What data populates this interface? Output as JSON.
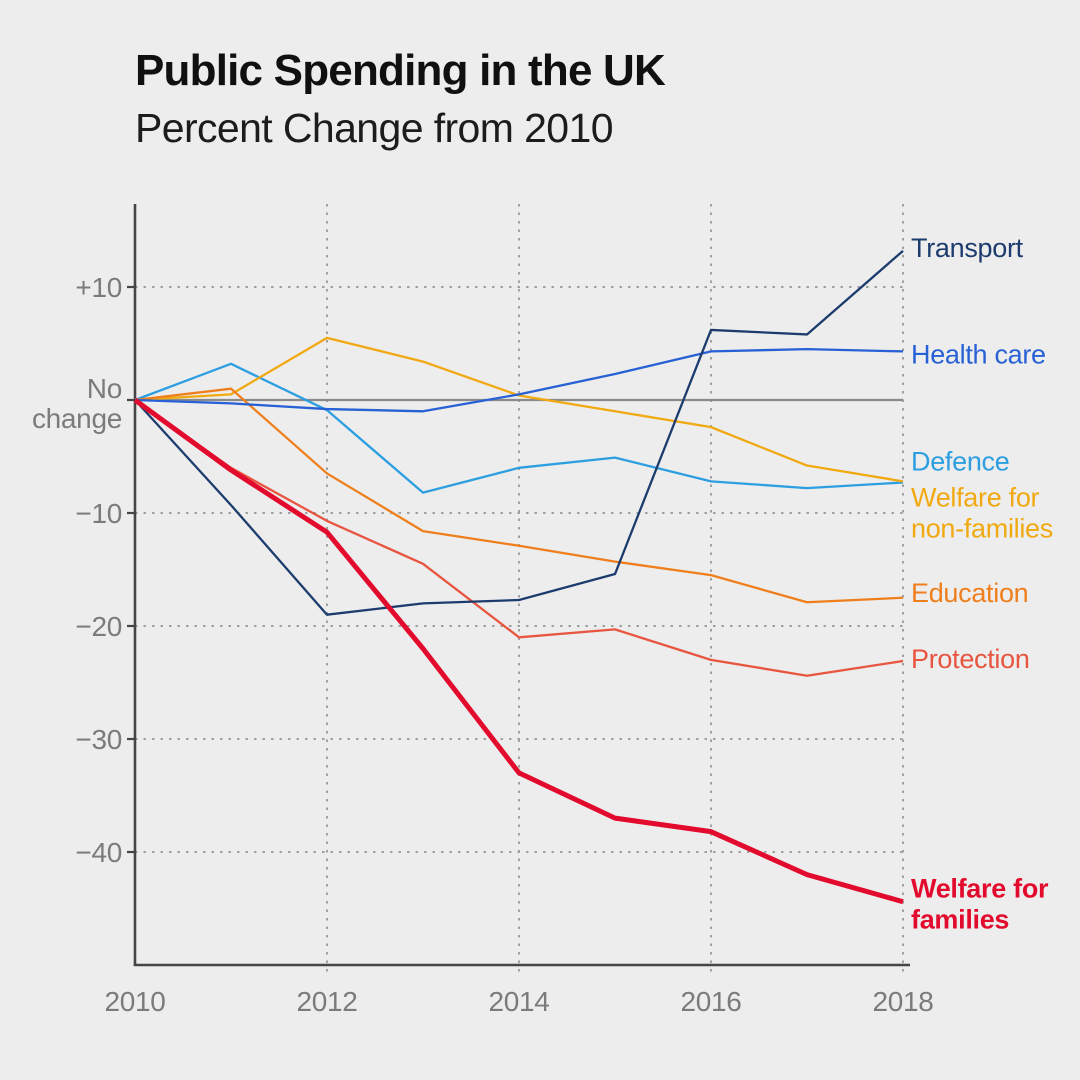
{
  "header": {
    "title": "Public Spending in the UK",
    "subtitle": "Percent Change from 2010"
  },
  "chart_data": {
    "type": "line",
    "x": [
      2010,
      2011,
      2012,
      2013,
      2014,
      2015,
      2016,
      2017,
      2018
    ],
    "xlabel": "",
    "ylabel": "Percent change from 2010",
    "ylim": [
      -48,
      16
    ],
    "grid": "dotted",
    "legend_position": "right-of-line-ends",
    "x_gridlines": [
      2012,
      2014,
      2016,
      2018
    ],
    "y_gridlines": [
      10,
      -10,
      -20,
      -30,
      -40
    ],
    "zero_line": true,
    "x_ticks": [
      {
        "value": 2010,
        "label": "2010"
      },
      {
        "value": 2012,
        "label": "2012"
      },
      {
        "value": 2014,
        "label": "2014"
      },
      {
        "value": 2016,
        "label": "2016"
      },
      {
        "value": 2018,
        "label": "2018"
      }
    ],
    "y_ticks": [
      {
        "value": 10,
        "lines": [
          "+10"
        ]
      },
      {
        "value": 0,
        "lines": [
          "No",
          "change"
        ]
      },
      {
        "value": -10,
        "lines": [
          "−10"
        ]
      },
      {
        "value": -20,
        "lines": [
          "−20"
        ]
      },
      {
        "value": -30,
        "lines": [
          "−30"
        ]
      },
      {
        "value": -40,
        "lines": [
          "−40"
        ]
      }
    ],
    "series": [
      {
        "id": "defence",
        "label_lines": [
          "Defence"
        ],
        "color": "#2d9fe0",
        "bold": false,
        "label_dy": -12,
        "values": [
          0,
          3.2,
          -0.9,
          -8.2,
          -6.0,
          -5.1,
          -7.2,
          -7.8,
          -7.3
        ]
      },
      {
        "id": "welfare-non-families",
        "label_lines": [
          "Welfare for",
          "non-families"
        ],
        "color": "#f1a912",
        "bold": false,
        "label_dy": 25,
        "values": [
          0,
          0.5,
          5.5,
          3.4,
          0.4,
          -1.0,
          -2.4,
          -5.8,
          -7.2
        ]
      },
      {
        "id": "education",
        "label_lines": [
          "Education"
        ],
        "color": "#ee7f1c",
        "bold": false,
        "label_dy": 4,
        "values": [
          0,
          1.0,
          -6.5,
          -11.6,
          -12.9,
          -14.3,
          -15.5,
          -17.9,
          -17.5
        ]
      },
      {
        "id": "protection",
        "label_lines": [
          "Protection"
        ],
        "color": "#e85540",
        "bold": false,
        "label_dy": 7,
        "values": [
          0,
          -6.0,
          -10.7,
          -14.5,
          -21.0,
          -20.3,
          -23.0,
          -24.4,
          -23.1
        ]
      },
      {
        "id": "health-care",
        "label_lines": [
          "Health care"
        ],
        "color": "#2761d5",
        "bold": false,
        "label_dy": 12,
        "values": [
          0,
          -0.3,
          -0.8,
          -1.0,
          0.5,
          2.3,
          4.3,
          4.5,
          4.3
        ]
      },
      {
        "id": "transport",
        "label_lines": [
          "Transport"
        ],
        "color": "#1d3c6e",
        "bold": false,
        "label_dy": 6,
        "values": [
          0,
          -9.3,
          -19.0,
          -18.0,
          -17.7,
          -15.4,
          6.2,
          5.8,
          13.2
        ]
      },
      {
        "id": "welfare-families",
        "label_lines": [
          "Welfare for",
          "families"
        ],
        "color": "#e30b2d",
        "bold": true,
        "label_dy": -4,
        "values": [
          0,
          -6.2,
          -11.7,
          -22.0,
          -33.0,
          -37.0,
          -38.2,
          -42.0,
          -44.4
        ]
      }
    ]
  },
  "colors": {
    "background": "#ededed",
    "axis": "#454545",
    "zero_line": "#8a8a8a",
    "gridline": "#a0a0a0",
    "tick_text": "#7b7b7b",
    "title_text": "#101010"
  }
}
